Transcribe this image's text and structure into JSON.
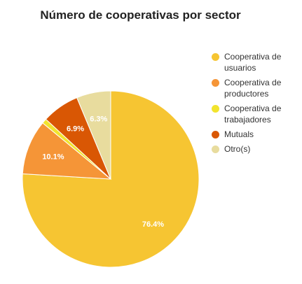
{
  "chart_data": {
    "type": "pie",
    "title": "Número de cooperativas por sector",
    "legend_position": "right",
    "categories": [
      "Cooperativa de usuarios",
      "Cooperativa de productores",
      "Cooperativa de trabajadores",
      "Mutuals",
      "Otro(s)"
    ],
    "values": [
      76.4,
      10.1,
      0.9,
      6.9,
      6.3
    ],
    "labels": [
      "76.4%",
      "10.1%",
      "",
      "6.9%",
      "6.3%"
    ],
    "colors": [
      "#f6c532",
      "#f59537",
      "#f2e42e",
      "#d95704",
      "#e8dc9e"
    ],
    "label_colors": [
      "#ffffff",
      "#ffffff",
      "#ffffff",
      "#ffffff",
      "#ffffff"
    ]
  }
}
